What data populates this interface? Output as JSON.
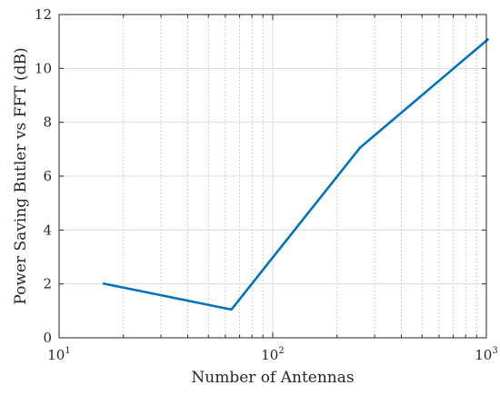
{
  "chart_data": {
    "type": "line",
    "title": "",
    "xlabel": "Number of Antennas",
    "ylabel": "Power Saving Butler vs FFT (dB)",
    "xscale": "log",
    "xlim": [
      10,
      1000
    ],
    "ylim": [
      0,
      12
    ],
    "grid": true,
    "legend": "none",
    "x_ticks": [
      {
        "value": 10,
        "base": "10",
        "exp": "1"
      },
      {
        "value": 100,
        "base": "10",
        "exp": "2"
      },
      {
        "value": 1000,
        "base": "10",
        "exp": "3"
      }
    ],
    "y_ticks": [
      {
        "value": 0,
        "label": "0"
      },
      {
        "value": 2,
        "label": "2"
      },
      {
        "value": 4,
        "label": "4"
      },
      {
        "value": 6,
        "label": "6"
      },
      {
        "value": 8,
        "label": "8"
      },
      {
        "value": 10,
        "label": "10"
      },
      {
        "value": 12,
        "label": "12"
      }
    ],
    "series": [
      {
        "color": "#0072BD",
        "x": [
          16,
          64,
          256,
          1024
        ],
        "y": [
          2.02,
          1.05,
          7.05,
          11.1
        ]
      }
    ],
    "colors": {
      "axis": "#262626",
      "grid": "#cccccc",
      "line": "#0072BD"
    }
  }
}
